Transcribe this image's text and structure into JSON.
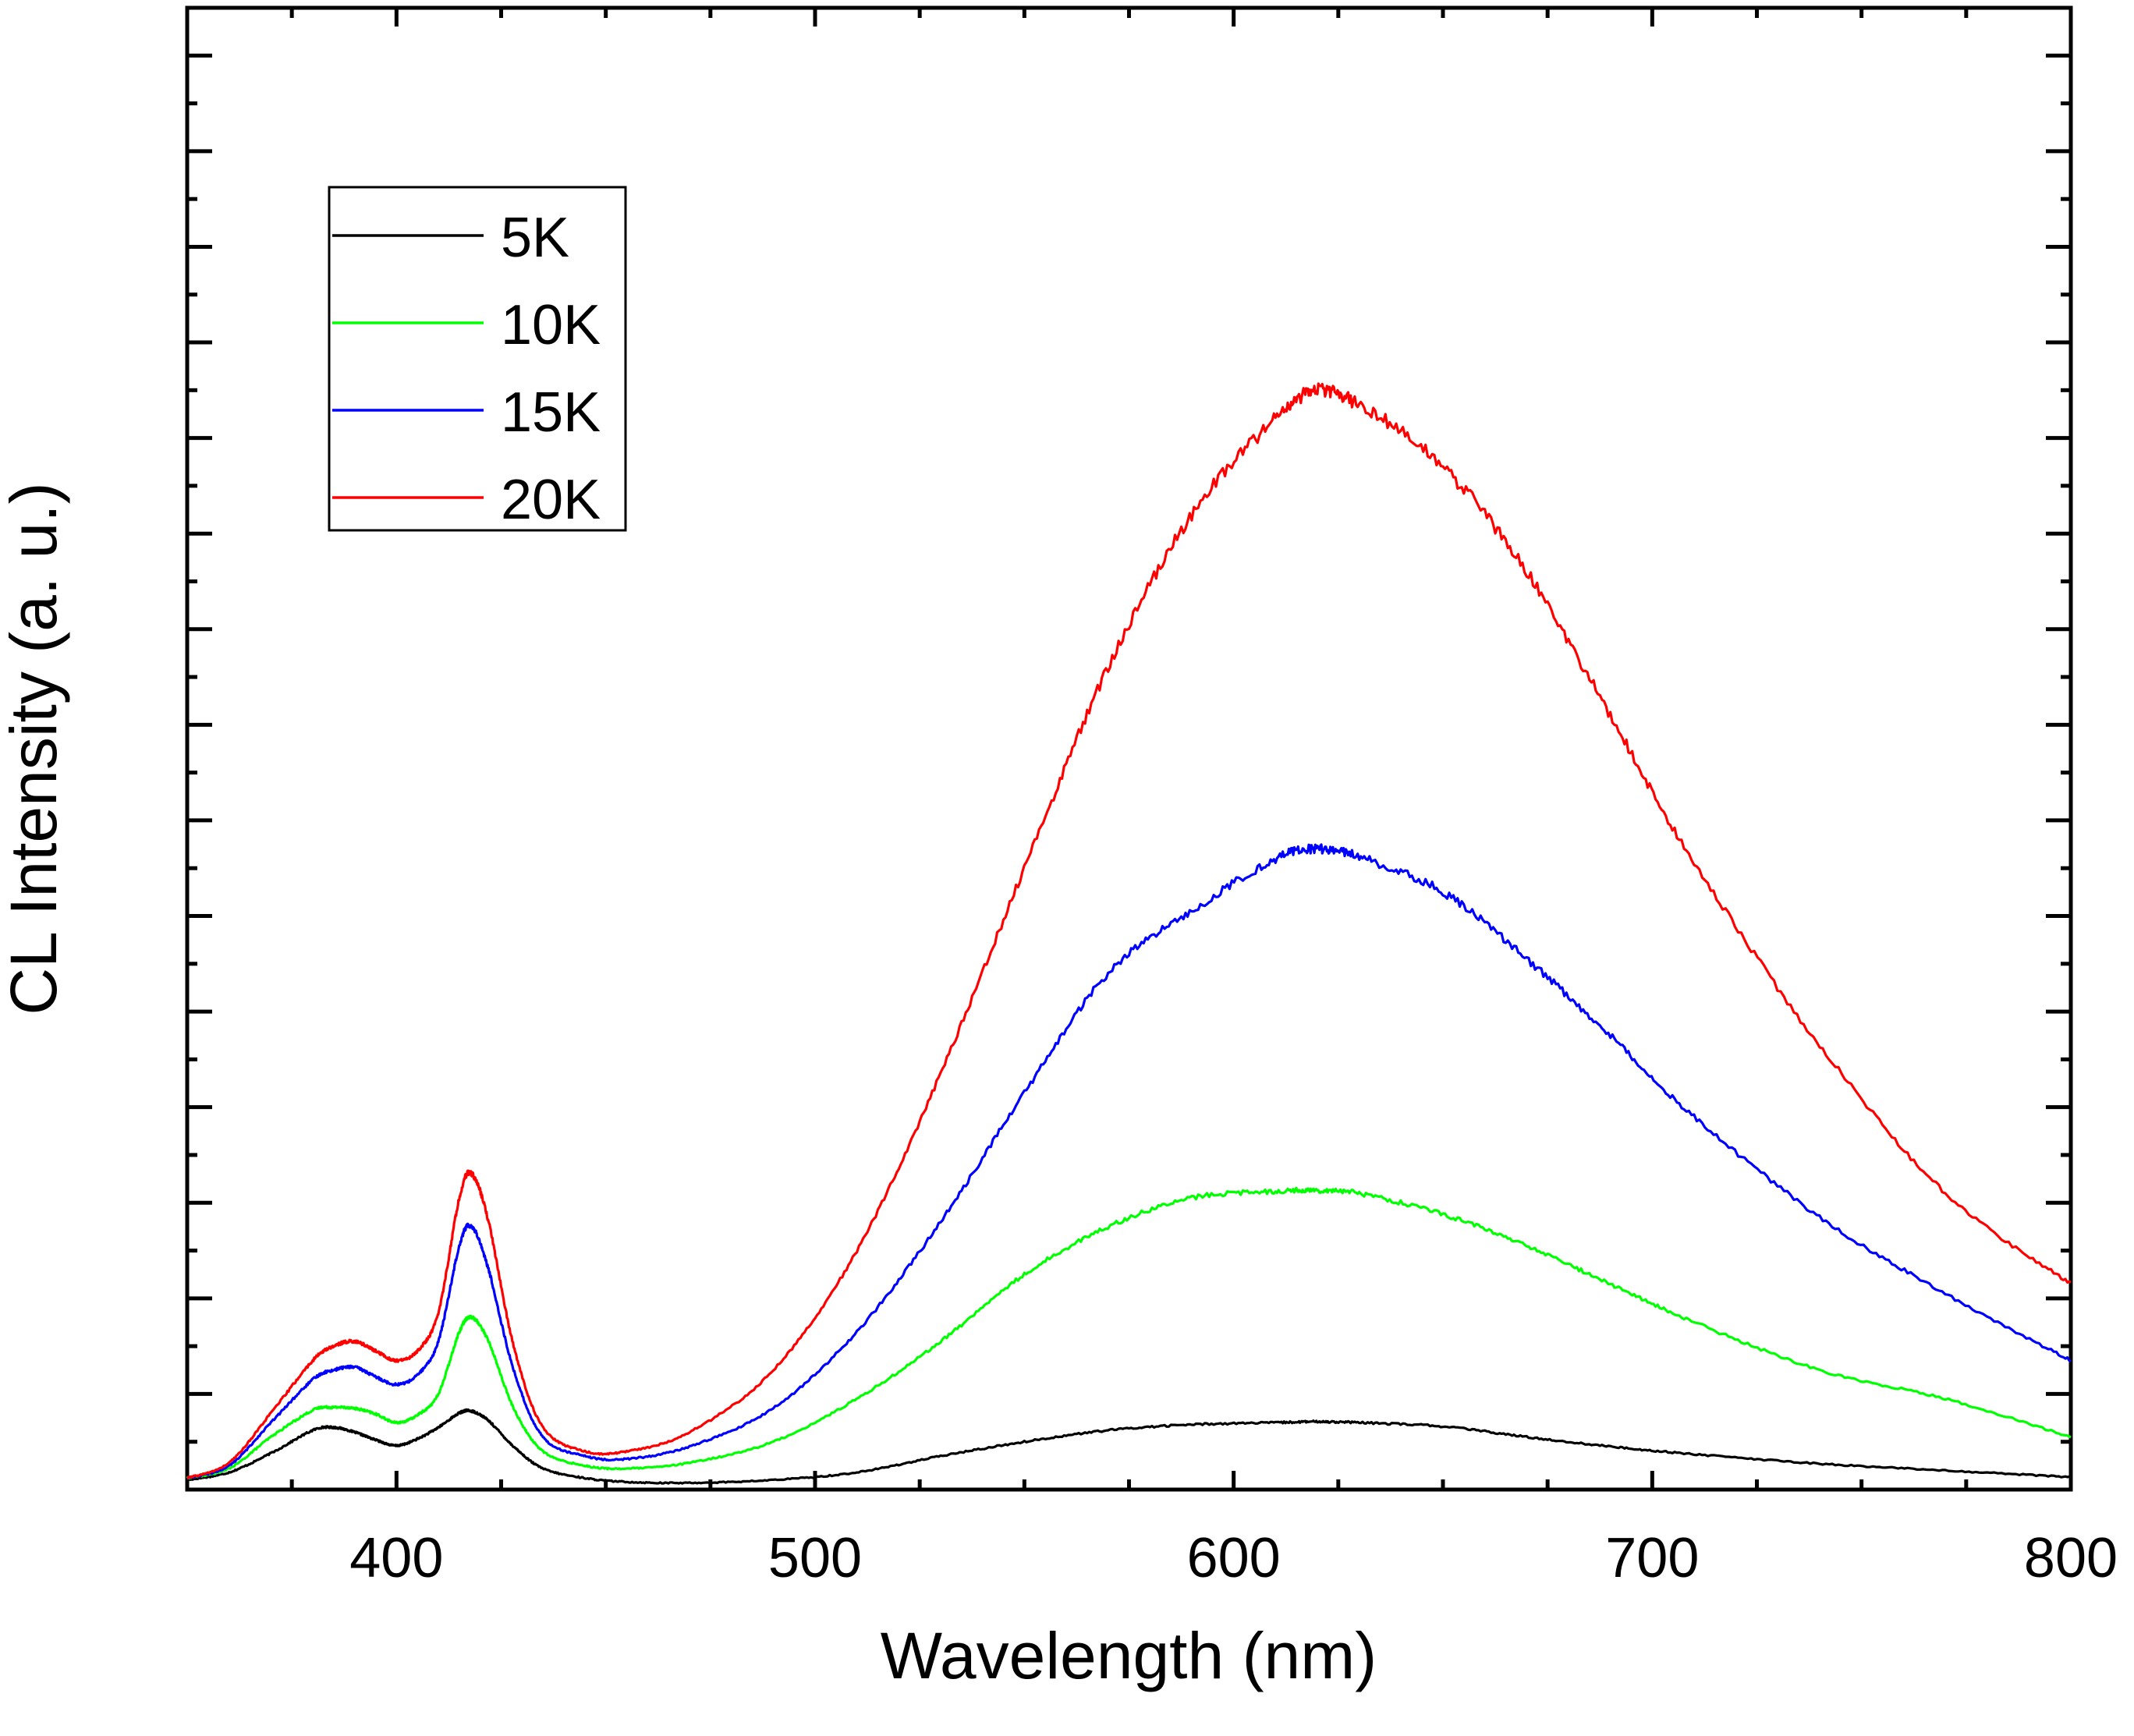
{
  "chart_data": {
    "type": "line",
    "title": "",
    "xlabel": "Wavelength (nm)",
    "ylabel": "CL Intensity (a. u.)",
    "xlim": [
      350,
      800
    ],
    "ylim": [
      0,
      15.5
    ],
    "x_ticks": [
      400,
      500,
      600,
      700,
      800
    ],
    "x_tick_labels": [
      "400",
      "500",
      "600",
      "700",
      "800"
    ],
    "y_tick_labels_shown": false,
    "grid": false,
    "legend_position": "top-left",
    "series": [
      {
        "name": "5K",
        "color": "#000000",
        "x": [
          350,
          360,
          370,
          380,
          385,
          390,
          395,
          400,
          405,
          410,
          415,
          418,
          422,
          428,
          435,
          445,
          455,
          470,
          490,
          510,
          530,
          550,
          570,
          590,
          610,
          620,
          630,
          650,
          670,
          690,
          710,
          740,
          770,
          800
        ],
        "y": [
          0.1,
          0.18,
          0.38,
          0.62,
          0.65,
          0.6,
          0.52,
          0.46,
          0.53,
          0.65,
          0.8,
          0.82,
          0.72,
          0.45,
          0.22,
          0.12,
          0.08,
          0.07,
          0.1,
          0.18,
          0.35,
          0.5,
          0.62,
          0.68,
          0.7,
          0.71,
          0.7,
          0.66,
          0.55,
          0.45,
          0.37,
          0.27,
          0.2,
          0.13
        ]
      },
      {
        "name": "10K",
        "color": "#00ff00",
        "x": [
          350,
          360,
          370,
          380,
          385,
          390,
          395,
          400,
          405,
          410,
          415,
          418,
          422,
          428,
          435,
          445,
          455,
          470,
          490,
          510,
          530,
          550,
          570,
          590,
          610,
          620,
          630,
          650,
          670,
          690,
          710,
          740,
          770,
          800
        ],
        "y": [
          0.12,
          0.22,
          0.55,
          0.83,
          0.86,
          0.85,
          0.79,
          0.7,
          0.78,
          1.0,
          1.65,
          1.8,
          1.55,
          0.85,
          0.4,
          0.25,
          0.22,
          0.28,
          0.5,
          0.95,
          1.55,
          2.25,
          2.75,
          3.05,
          3.12,
          3.13,
          3.1,
          2.88,
          2.55,
          2.15,
          1.75,
          1.25,
          0.95,
          0.55
        ]
      },
      {
        "name": "15K",
        "color": "#0000ff",
        "x": [
          350,
          360,
          370,
          380,
          385,
          390,
          395,
          400,
          405,
          410,
          415,
          418,
          422,
          428,
          435,
          445,
          455,
          470,
          490,
          510,
          530,
          550,
          570,
          590,
          610,
          620,
          630,
          650,
          670,
          690,
          710,
          740,
          770,
          800
        ],
        "y": [
          0.12,
          0.25,
          0.7,
          1.15,
          1.25,
          1.28,
          1.18,
          1.1,
          1.2,
          1.55,
          2.55,
          2.75,
          2.3,
          1.25,
          0.55,
          0.35,
          0.32,
          0.45,
          0.85,
          1.65,
          2.8,
          4.15,
          5.4,
          6.05,
          6.6,
          6.7,
          6.62,
          6.25,
          5.55,
          4.75,
          3.9,
          2.85,
          2.05,
          1.35
        ]
      },
      {
        "name": "20K",
        "color": "#ff0000",
        "x": [
          350,
          360,
          370,
          380,
          385,
          390,
          395,
          400,
          405,
          410,
          415,
          418,
          422,
          428,
          435,
          445,
          455,
          470,
          490,
          510,
          530,
          550,
          570,
          590,
          610,
          620,
          630,
          650,
          670,
          690,
          710,
          740,
          770,
          800
        ],
        "y": [
          0.12,
          0.28,
          0.8,
          1.35,
          1.5,
          1.55,
          1.45,
          1.35,
          1.45,
          1.85,
          3.05,
          3.3,
          2.8,
          1.5,
          0.65,
          0.4,
          0.4,
          0.6,
          1.25,
          2.5,
          4.35,
          6.5,
          8.6,
          10.2,
          11.2,
          11.5,
          11.35,
          10.7,
          9.6,
          8.1,
          6.55,
          4.65,
          3.1,
          2.15
        ]
      }
    ]
  }
}
